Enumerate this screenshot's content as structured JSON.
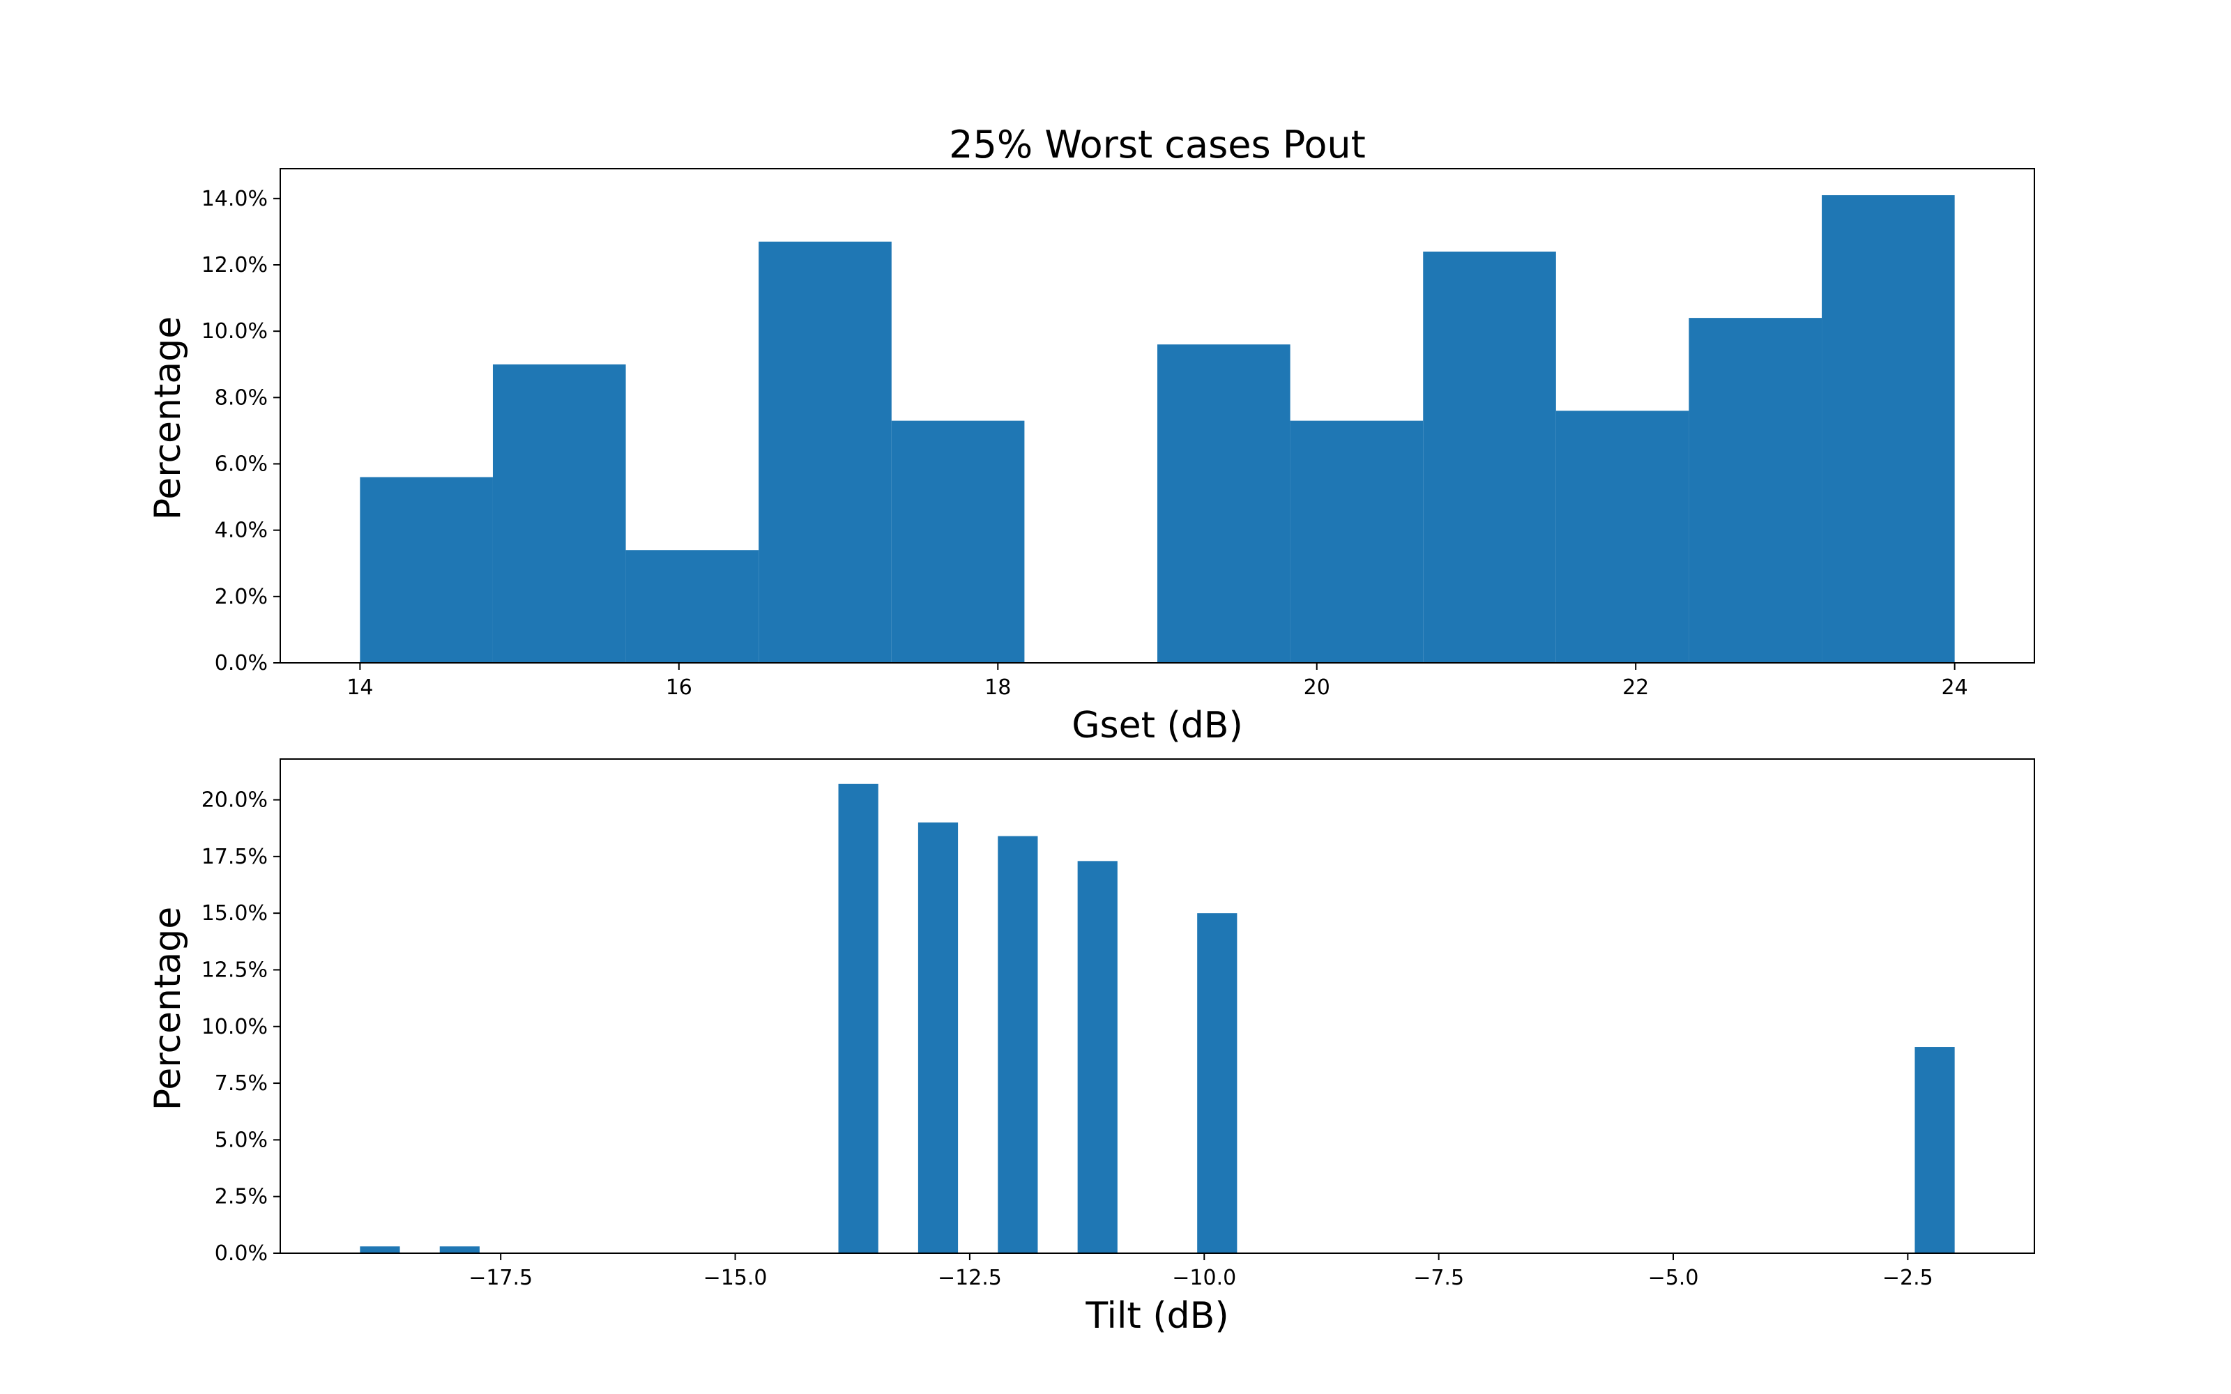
{
  "colors": {
    "bar": "#1f77b4",
    "axis": "#000000",
    "background": "#ffffff"
  },
  "chart_data": [
    {
      "type": "bar",
      "title": "25% Worst cases Pout",
      "xlabel": "Gset (dB)",
      "ylabel": "Percentage",
      "xlim": [
        13.5,
        24.5
      ],
      "ylim": [
        0,
        14.9
      ],
      "bin_edges": [
        14.0,
        14.8333,
        15.6667,
        16.5,
        17.3333,
        18.1667,
        19.0,
        19.8333,
        20.6667,
        21.5,
        22.3333,
        23.1667,
        24.0
      ],
      "values": [
        5.6,
        9.0,
        3.4,
        12.7,
        7.3,
        0.0,
        9.6,
        7.3,
        12.4,
        7.6,
        10.4,
        14.1
      ],
      "xticks": [
        14,
        16,
        18,
        20,
        22,
        24
      ],
      "xtick_labels": [
        "14",
        "16",
        "18",
        "20",
        "22",
        "24"
      ],
      "yticks": [
        0,
        2,
        4,
        6,
        8,
        10,
        12,
        14
      ],
      "ytick_labels": [
        "0.0%",
        "2.0%",
        "4.0%",
        "6.0%",
        "8.0%",
        "10.0%",
        "12.0%",
        "14.0%"
      ],
      "grid": false,
      "legend": "none"
    },
    {
      "type": "bar",
      "title": "",
      "xlabel": "Tilt (dB)",
      "ylabel": "Percentage",
      "xlim": [
        -19.85,
        -1.15
      ],
      "ylim": [
        0,
        21.8
      ],
      "bin_edges": [
        -19.0,
        -18.575,
        -18.15,
        -17.725,
        -17.3,
        -16.875,
        -16.45,
        -16.025,
        -15.6,
        -15.175,
        -14.75,
        -14.325,
        -13.9,
        -13.475,
        -13.05,
        -12.625,
        -12.2,
        -11.775,
        -11.35,
        -10.925,
        -10.5,
        -10.075,
        -9.65,
        -9.225,
        -8.8,
        -8.375,
        -7.95,
        -7.525,
        -7.1,
        -6.675,
        -6.25,
        -5.825,
        -5.4,
        -4.975,
        -4.55,
        -4.125,
        -3.7,
        -3.275,
        -2.85,
        -2.425,
        -2.0
      ],
      "values": [
        0.3,
        0,
        0.3,
        0,
        0,
        0,
        0,
        0,
        0,
        0,
        0,
        0,
        20.7,
        0,
        19.0,
        0,
        18.4,
        0,
        17.3,
        0,
        0,
        15.0,
        0,
        0,
        0,
        0,
        0,
        0,
        0,
        0,
        0,
        0,
        0,
        0,
        0,
        0,
        0,
        0,
        0,
        9.1
      ],
      "xticks": [
        -17.5,
        -15.0,
        -12.5,
        -10.0,
        -7.5,
        -5.0,
        -2.5
      ],
      "xtick_labels": [
        "−17.5",
        "−15.0",
        "−12.5",
        "−10.0",
        "−7.5",
        "−5.0",
        "−2.5"
      ],
      "yticks": [
        0,
        2.5,
        5,
        7.5,
        10,
        12.5,
        15,
        17.5,
        20
      ],
      "ytick_labels": [
        "0.0%",
        "2.5%",
        "5.0%",
        "7.5%",
        "10.0%",
        "12.5%",
        "15.0%",
        "17.5%",
        "20.0%"
      ],
      "grid": false,
      "legend": "none"
    }
  ]
}
